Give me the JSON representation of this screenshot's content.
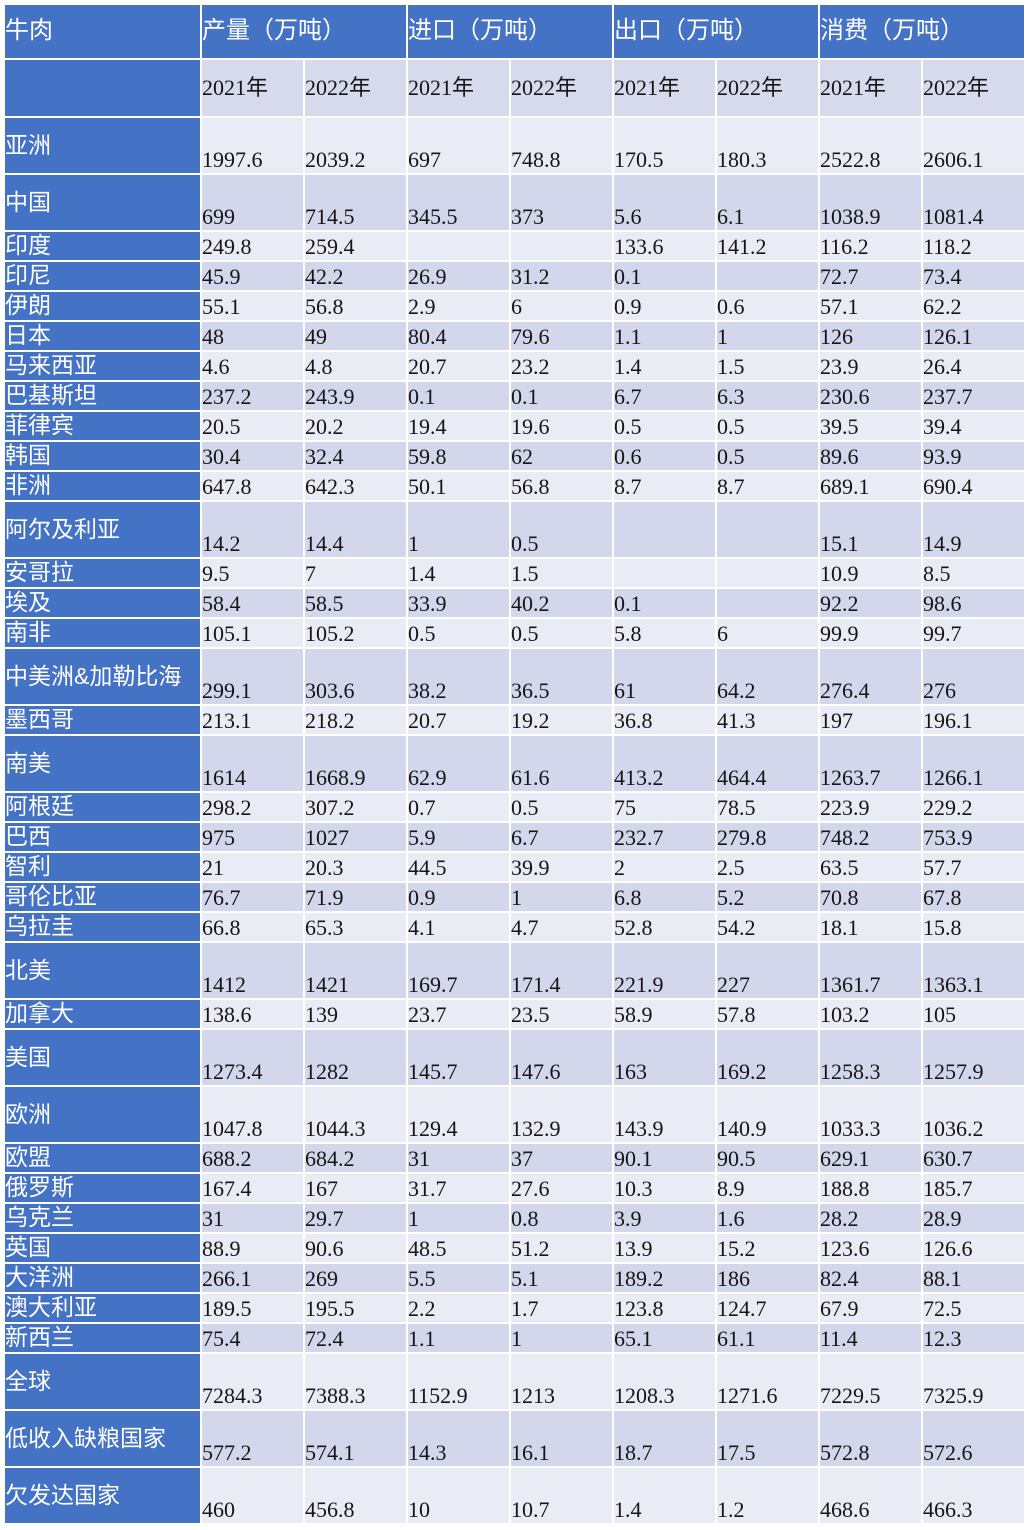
{
  "table": {
    "title": "牛肉"
  },
  "colors": {
    "header_blue": "#4472C4",
    "band_light": "#EAECF5",
    "band_dark": "#D2D7EB",
    "grid_white": "#FFFFFF",
    "header_text": "#FFFFFF",
    "data_text": "#151515"
  },
  "chart_data": {
    "type": "table",
    "title": "牛肉",
    "unit": "万吨",
    "column_groups": [
      "产量（万吨）",
      "进口（万吨）",
      "出口（万吨）",
      "消费（万吨）"
    ],
    "years": [
      "2021年",
      "2022年"
    ],
    "columns": [
      "产量 2021年",
      "产量 2022年",
      "进口 2021年",
      "进口 2022年",
      "出口 2021年",
      "出口 2022年",
      "消费 2021年",
      "消费 2022年"
    ],
    "rows": [
      {
        "label": "亚洲",
        "size": "tall",
        "values": [
          "1997.6",
          "2039.2",
          "697",
          "748.8",
          "170.5",
          "180.3",
          "2522.8",
          "2606.1"
        ]
      },
      {
        "label": "中国",
        "size": "tall",
        "values": [
          "699",
          "714.5",
          "345.5",
          "373",
          "5.6",
          "6.1",
          "1038.9",
          "1081.4"
        ]
      },
      {
        "label": "印度",
        "size": "reg",
        "values": [
          "249.8",
          "259.4",
          "",
          "",
          "133.6",
          "141.2",
          "116.2",
          "118.2"
        ]
      },
      {
        "label": "印尼",
        "size": "reg",
        "values": [
          "45.9",
          "42.2",
          "26.9",
          "31.2",
          "0.1",
          "",
          "72.7",
          "73.4"
        ]
      },
      {
        "label": "伊朗",
        "size": "reg",
        "values": [
          "55.1",
          "56.8",
          "2.9",
          "6",
          "0.9",
          "0.6",
          "57.1",
          "62.2"
        ]
      },
      {
        "label": "日本",
        "size": "reg",
        "values": [
          "48",
          "49",
          "80.4",
          "79.6",
          "1.1",
          "1",
          "126",
          "126.1"
        ]
      },
      {
        "label": "马来西亚",
        "size": "reg",
        "values": [
          "4.6",
          "4.8",
          "20.7",
          "23.2",
          "1.4",
          "1.5",
          "23.9",
          "26.4"
        ]
      },
      {
        "label": "巴基斯坦",
        "size": "reg",
        "values": [
          "237.2",
          "243.9",
          "0.1",
          "0.1",
          "6.7",
          "6.3",
          "230.6",
          "237.7"
        ]
      },
      {
        "label": "菲律宾",
        "size": "reg",
        "values": [
          "20.5",
          "20.2",
          "19.4",
          "19.6",
          "0.5",
          "0.5",
          "39.5",
          "39.4"
        ]
      },
      {
        "label": "韩国",
        "size": "reg",
        "values": [
          "30.4",
          "32.4",
          "59.8",
          "62",
          "0.6",
          "0.5",
          "89.6",
          "93.9"
        ]
      },
      {
        "label": "非洲",
        "size": "reg",
        "values": [
          "647.8",
          "642.3",
          "50.1",
          "56.8",
          "8.7",
          "8.7",
          "689.1",
          "690.4"
        ]
      },
      {
        "label": "阿尔及利亚",
        "size": "tall",
        "values": [
          "14.2",
          "14.4",
          "1",
          "0.5",
          "",
          "",
          "15.1",
          "14.9"
        ]
      },
      {
        "label": "安哥拉",
        "size": "reg",
        "values": [
          "9.5",
          "7",
          "1.4",
          "1.5",
          "",
          "",
          "10.9",
          "8.5"
        ]
      },
      {
        "label": "埃及",
        "size": "reg",
        "values": [
          "58.4",
          "58.5",
          "33.9",
          "40.2",
          "0.1",
          "",
          "92.2",
          "98.6"
        ]
      },
      {
        "label": "南非",
        "size": "reg",
        "values": [
          "105.1",
          "105.2",
          "0.5",
          "0.5",
          "5.8",
          "6",
          "99.9",
          "99.7"
        ]
      },
      {
        "label": "中美洲&加勒比海",
        "size": "tall",
        "values": [
          "299.1",
          "303.6",
          "38.2",
          "36.5",
          "61",
          "64.2",
          "276.4",
          "276"
        ]
      },
      {
        "label": "墨西哥",
        "size": "reg",
        "values": [
          "213.1",
          "218.2",
          "20.7",
          "19.2",
          "36.8",
          "41.3",
          "197",
          "196.1"
        ]
      },
      {
        "label": "南美",
        "size": "tall",
        "values": [
          "1614",
          "1668.9",
          "62.9",
          "61.6",
          "413.2",
          "464.4",
          "1263.7",
          "1266.1"
        ]
      },
      {
        "label": "阿根廷",
        "size": "reg",
        "values": [
          "298.2",
          "307.2",
          "0.7",
          "0.5",
          "75",
          "78.5",
          "223.9",
          "229.2"
        ]
      },
      {
        "label": "巴西",
        "size": "reg",
        "values": [
          "975",
          "1027",
          "5.9",
          "6.7",
          "232.7",
          "279.8",
          "748.2",
          "753.9"
        ]
      },
      {
        "label": "智利",
        "size": "reg",
        "values": [
          "21",
          "20.3",
          "44.5",
          "39.9",
          "2",
          "2.5",
          "63.5",
          "57.7"
        ]
      },
      {
        "label": "哥伦比亚",
        "size": "reg",
        "values": [
          "76.7",
          "71.9",
          "0.9",
          "1",
          "6.8",
          "5.2",
          "70.8",
          "67.8"
        ]
      },
      {
        "label": "乌拉圭",
        "size": "reg",
        "values": [
          "66.8",
          "65.3",
          "4.1",
          "4.7",
          "52.8",
          "54.2",
          "18.1",
          "15.8"
        ]
      },
      {
        "label": "北美",
        "size": "tall",
        "values": [
          "1412",
          "1421",
          "169.7",
          "171.4",
          "221.9",
          "227",
          "1361.7",
          "1363.1"
        ]
      },
      {
        "label": "加拿大",
        "size": "reg",
        "values": [
          "138.6",
          "139",
          "23.7",
          "23.5",
          "58.9",
          "57.8",
          "103.2",
          "105"
        ]
      },
      {
        "label": "美国",
        "size": "tall",
        "values": [
          "1273.4",
          "1282",
          "145.7",
          "147.6",
          "163",
          "169.2",
          "1258.3",
          "1257.9"
        ]
      },
      {
        "label": "欧洲",
        "size": "tall",
        "values": [
          "1047.8",
          "1044.3",
          "129.4",
          "132.9",
          "143.9",
          "140.9",
          "1033.3",
          "1036.2"
        ]
      },
      {
        "label": "欧盟",
        "size": "reg",
        "values": [
          "688.2",
          "684.2",
          "31",
          "37",
          "90.1",
          "90.5",
          "629.1",
          "630.7"
        ]
      },
      {
        "label": "俄罗斯",
        "size": "reg",
        "values": [
          "167.4",
          "167",
          "31.7",
          "27.6",
          "10.3",
          "8.9",
          "188.8",
          "185.7"
        ]
      },
      {
        "label": "乌克兰",
        "size": "reg",
        "values": [
          "31",
          "29.7",
          "1",
          "0.8",
          "3.9",
          "1.6",
          "28.2",
          "28.9"
        ]
      },
      {
        "label": "英国",
        "size": "reg",
        "values": [
          "88.9",
          "90.6",
          "48.5",
          "51.2",
          "13.9",
          "15.2",
          "123.6",
          "126.6"
        ]
      },
      {
        "label": "大洋洲",
        "size": "reg",
        "values": [
          "266.1",
          "269",
          "5.5",
          "5.1",
          "189.2",
          "186",
          "82.4",
          "88.1"
        ]
      },
      {
        "label": "澳大利亚",
        "size": "reg",
        "values": [
          "189.5",
          "195.5",
          "2.2",
          "1.7",
          "123.8",
          "124.7",
          "67.9",
          "72.5"
        ]
      },
      {
        "label": "新西兰",
        "size": "reg",
        "values": [
          "75.4",
          "72.4",
          "1.1",
          "1",
          "65.1",
          "61.1",
          "11.4",
          "12.3"
        ]
      },
      {
        "label": "全球",
        "size": "tall",
        "values": [
          "7284.3",
          "7388.3",
          "1152.9",
          "1213",
          "1208.3",
          "1271.6",
          "7229.5",
          "7325.9"
        ]
      },
      {
        "label": "低收入缺粮国家",
        "size": "tall",
        "values": [
          "577.2",
          "574.1",
          "14.3",
          "16.1",
          "18.7",
          "17.5",
          "572.8",
          "572.6"
        ]
      },
      {
        "label": "欠发达国家",
        "size": "tall",
        "values": [
          "460",
          "456.8",
          "10",
          "10.7",
          "1.4",
          "1.2",
          "468.6",
          "466.3"
        ]
      }
    ]
  }
}
